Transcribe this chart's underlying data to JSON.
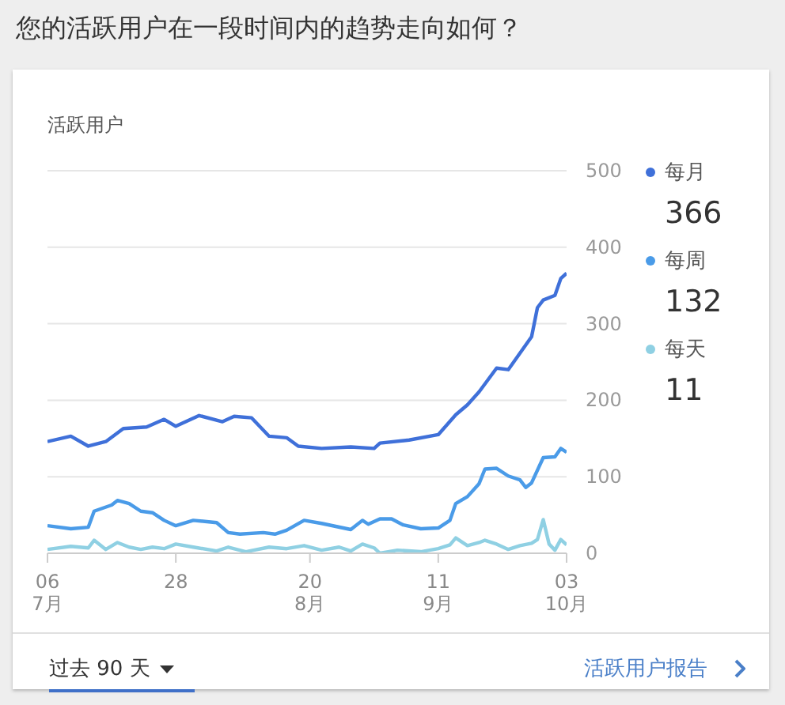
{
  "chart_data": {
    "type": "line",
    "title": "您的活跃用户在一段时间内的趋势走向如何？",
    "subtitle": "活跃用户",
    "series": [
      {
        "name": "每月",
        "color": "#3f70d9",
        "x": [
          "--07-06",
          "--07-10",
          "--07-13",
          "--07-16",
          "--07-19",
          "--07-23",
          "--07-26",
          "--07-28",
          "--08-01",
          "--08-05",
          "--08-07",
          "--08-10",
          "--08-13",
          "--08-16",
          "--08-18",
          "--08-22",
          "--08-27",
          "--08-31",
          "--09-01",
          "--09-06",
          "--09-11",
          "--09-14",
          "--09-16",
          "--09-18",
          "--09-21",
          "--09-23",
          "--09-27",
          "--09-28",
          "--09-29",
          "--10-01",
          "--10-02",
          "--10-03"
        ],
        "values": [
          146,
          153,
          140,
          146,
          163,
          165,
          175,
          166,
          180,
          172,
          179,
          177,
          153,
          151,
          140,
          137,
          139,
          137,
          144,
          148,
          155,
          181,
          194,
          211,
          242,
          240,
          283,
          321,
          331,
          337,
          359,
          366
        ]
      },
      {
        "name": "每周",
        "color": "#4a9be8",
        "x": [
          "--07-06",
          "--07-10",
          "--07-13",
          "--07-14",
          "--07-17",
          "--07-18",
          "--07-20",
          "--07-22",
          "--07-24",
          "--07-26",
          "--07-28",
          "--07-31",
          "--08-04",
          "--08-06",
          "--08-08",
          "--08-12",
          "--08-14",
          "--08-16",
          "--08-19",
          "--08-22",
          "--08-27",
          "--08-29",
          "--08-30",
          "--09-01",
          "--09-03",
          "--09-05",
          "--09-08",
          "--09-11",
          "--09-13",
          "--09-14",
          "--09-16",
          "--09-18",
          "--09-19",
          "--09-21",
          "--09-23",
          "--09-25",
          "--09-26",
          "--09-27",
          "--09-29",
          "--10-01",
          "--10-02",
          "--10-03"
        ],
        "values": [
          36,
          32,
          34,
          55,
          63,
          69,
          65,
          55,
          53,
          43,
          36,
          43,
          40,
          27,
          25,
          27,
          25,
          30,
          43,
          39,
          31,
          43,
          38,
          45,
          45,
          37,
          32,
          33,
          43,
          65,
          74,
          91,
          110,
          111,
          101,
          96,
          86,
          92,
          125,
          126,
          137,
          132
        ]
      },
      {
        "name": "每天",
        "color": "#8fd0e3",
        "x": [
          "--07-06",
          "--07-10",
          "--07-13",
          "--07-14",
          "--07-16",
          "--07-18",
          "--07-20",
          "--07-22",
          "--07-24",
          "--07-26",
          "--07-28",
          "--07-31",
          "--08-04",
          "--08-06",
          "--08-09",
          "--08-13",
          "--08-16",
          "--08-19",
          "--08-22",
          "--08-25",
          "--08-27",
          "--08-29",
          "--08-31",
          "--09-01",
          "--09-04",
          "--09-08",
          "--09-11",
          "--09-13",
          "--09-14",
          "--09-16",
          "--09-18",
          "--09-19",
          "--09-21",
          "--09-23",
          "--09-25",
          "--09-27",
          "--09-28",
          "--09-29",
          "--09-30",
          "--10-01",
          "--10-02",
          "--10-03"
        ],
        "values": [
          5,
          9,
          7,
          17,
          5,
          14,
          8,
          5,
          8,
          6,
          12,
          8,
          3,
          8,
          2,
          8,
          6,
          10,
          4,
          8,
          3,
          12,
          7,
          0,
          4,
          2,
          6,
          11,
          20,
          10,
          14,
          17,
          12,
          5,
          10,
          13,
          18,
          44,
          12,
          4,
          18,
          11
        ]
      }
    ],
    "xlim": [
      "--07-06",
      "--10-03"
    ],
    "xticks": [
      {
        "value": "--07-06",
        "label": "06\n7月"
      },
      {
        "value": "--07-28",
        "label": "28"
      },
      {
        "value": "--08-20",
        "label": "20\n8月"
      },
      {
        "value": "--09-11",
        "label": "11\n9月"
      },
      {
        "value": "--10-03",
        "label": "03\n10月"
      }
    ],
    "ylim": [
      0,
      500
    ],
    "yticks": [
      0,
      100,
      200,
      300,
      400,
      500
    ],
    "grid": "y",
    "legend": "right",
    "marker": "none",
    "line_style": "solid",
    "annotations": [
      "366",
      "132",
      "11",
      "过去 90 天",
      "活跃用户报告"
    ]
  }
}
